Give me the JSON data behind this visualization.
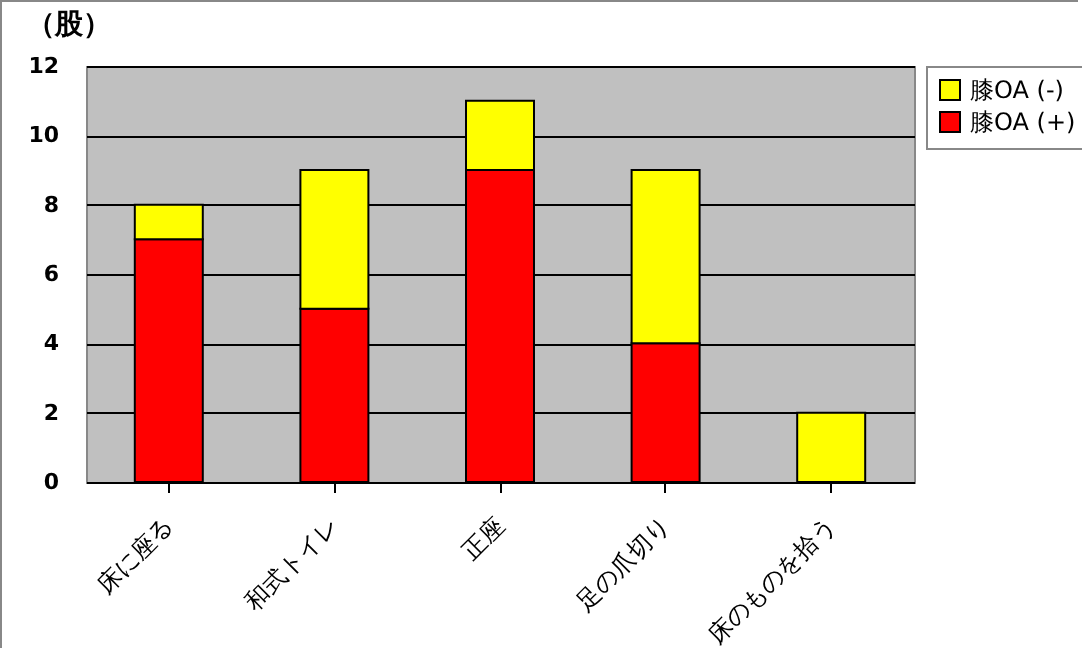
{
  "chart_data": {
    "type": "bar",
    "stacked": true,
    "ylabel": "（股）",
    "categories": [
      "床に座る",
      "和式トイレ",
      "正座",
      "足の爪切り",
      "床のものを拾う"
    ],
    "series": [
      {
        "name": "膝OA (+)",
        "color": "#ff0000",
        "values": [
          7,
          5,
          9,
          4,
          0
        ]
      },
      {
        "name": "膝OA (-)",
        "color": "#ffff00",
        "values": [
          1,
          4,
          2,
          5,
          2
        ]
      }
    ],
    "ylim": [
      0,
      12
    ],
    "yticks": [
      0,
      2,
      4,
      6,
      8,
      10,
      12
    ],
    "grid": "y",
    "legend": "right"
  }
}
